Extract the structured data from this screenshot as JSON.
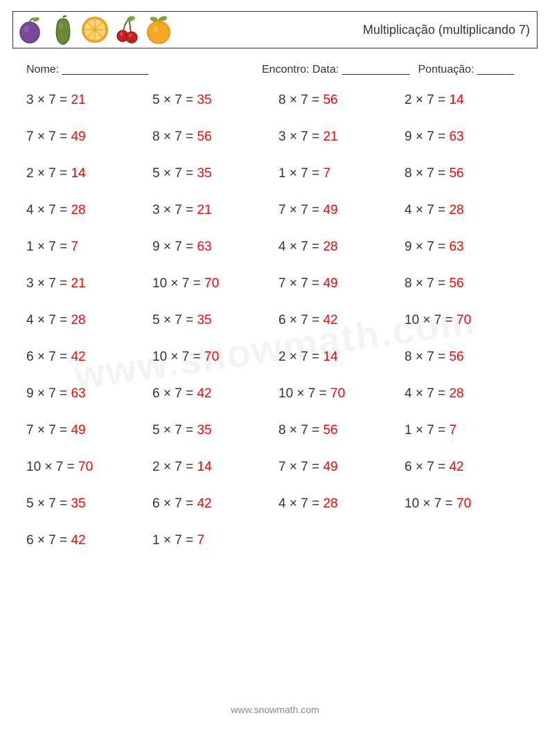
{
  "header": {
    "title": "Multiplicação (multiplicando 7)",
    "fruit_icons": [
      "plum",
      "avocado",
      "orange-slice",
      "cherries",
      "orange"
    ]
  },
  "info": {
    "name_label": "Nome: ______________",
    "date_label": "Encontro: Data: ___________",
    "score_label": "Pontuação: ______"
  },
  "style": {
    "text_color": "#333333",
    "answer_color": "#ff0000",
    "background": "#ffffff",
    "border_color": "#333333",
    "font_size_problem": 19,
    "font_size_title": 18,
    "font_size_info": 16,
    "columns": 4,
    "row_gap": 31
  },
  "watermark": "www.snowmath.com",
  "footer": "www.snowmath.com",
  "problems": [
    [
      {
        "a": 3,
        "b": 7,
        "ans": 21
      },
      {
        "a": 5,
        "b": 7,
        "ans": 35
      },
      {
        "a": 8,
        "b": 7,
        "ans": 56
      },
      {
        "a": 2,
        "b": 7,
        "ans": 14
      }
    ],
    [
      {
        "a": 7,
        "b": 7,
        "ans": 49
      },
      {
        "a": 8,
        "b": 7,
        "ans": 56
      },
      {
        "a": 3,
        "b": 7,
        "ans": 21
      },
      {
        "a": 9,
        "b": 7,
        "ans": 63
      }
    ],
    [
      {
        "a": 2,
        "b": 7,
        "ans": 14
      },
      {
        "a": 5,
        "b": 7,
        "ans": 35
      },
      {
        "a": 1,
        "b": 7,
        "ans": 7
      },
      {
        "a": 8,
        "b": 7,
        "ans": 56
      }
    ],
    [
      {
        "a": 4,
        "b": 7,
        "ans": 28
      },
      {
        "a": 3,
        "b": 7,
        "ans": 21
      },
      {
        "a": 7,
        "b": 7,
        "ans": 49
      },
      {
        "a": 4,
        "b": 7,
        "ans": 28
      }
    ],
    [
      {
        "a": 1,
        "b": 7,
        "ans": 7
      },
      {
        "a": 9,
        "b": 7,
        "ans": 63
      },
      {
        "a": 4,
        "b": 7,
        "ans": 28
      },
      {
        "a": 9,
        "b": 7,
        "ans": 63
      }
    ],
    [
      {
        "a": 3,
        "b": 7,
        "ans": 21
      },
      {
        "a": 10,
        "b": 7,
        "ans": 70
      },
      {
        "a": 7,
        "b": 7,
        "ans": 49
      },
      {
        "a": 8,
        "b": 7,
        "ans": 56
      }
    ],
    [
      {
        "a": 4,
        "b": 7,
        "ans": 28
      },
      {
        "a": 5,
        "b": 7,
        "ans": 35
      },
      {
        "a": 6,
        "b": 7,
        "ans": 42
      },
      {
        "a": 10,
        "b": 7,
        "ans": 70
      }
    ],
    [
      {
        "a": 6,
        "b": 7,
        "ans": 42
      },
      {
        "a": 10,
        "b": 7,
        "ans": 70
      },
      {
        "a": 2,
        "b": 7,
        "ans": 14
      },
      {
        "a": 8,
        "b": 7,
        "ans": 56
      }
    ],
    [
      {
        "a": 9,
        "b": 7,
        "ans": 63
      },
      {
        "a": 6,
        "b": 7,
        "ans": 42
      },
      {
        "a": 10,
        "b": 7,
        "ans": 70
      },
      {
        "a": 4,
        "b": 7,
        "ans": 28
      }
    ],
    [
      {
        "a": 7,
        "b": 7,
        "ans": 49
      },
      {
        "a": 5,
        "b": 7,
        "ans": 35
      },
      {
        "a": 8,
        "b": 7,
        "ans": 56
      },
      {
        "a": 1,
        "b": 7,
        "ans": 7
      }
    ],
    [
      {
        "a": 10,
        "b": 7,
        "ans": 70
      },
      {
        "a": 2,
        "b": 7,
        "ans": 14
      },
      {
        "a": 7,
        "b": 7,
        "ans": 49
      },
      {
        "a": 6,
        "b": 7,
        "ans": 42
      }
    ],
    [
      {
        "a": 5,
        "b": 7,
        "ans": 35
      },
      {
        "a": 6,
        "b": 7,
        "ans": 42
      },
      {
        "a": 4,
        "b": 7,
        "ans": 28
      },
      {
        "a": 10,
        "b": 7,
        "ans": 70
      }
    ],
    [
      {
        "a": 6,
        "b": 7,
        "ans": 42
      },
      {
        "a": 1,
        "b": 7,
        "ans": 7
      }
    ]
  ]
}
